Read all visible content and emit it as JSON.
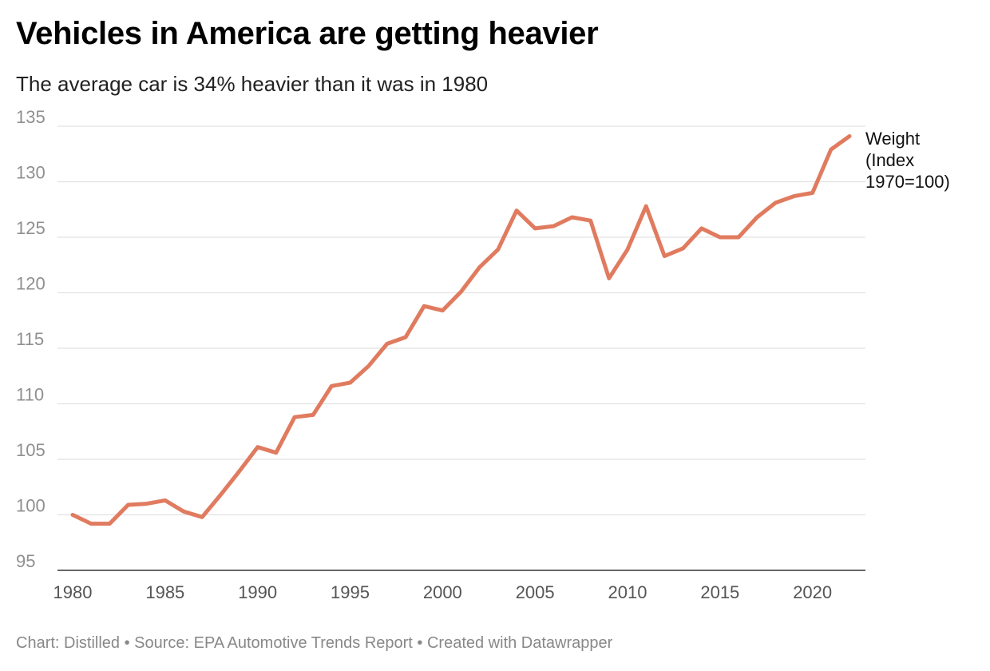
{
  "header": {
    "title": "Vehicles in America are getting heavier",
    "subtitle": "The average car is 34% heavier than it was in 1980"
  },
  "footer": {
    "text": "Chart: Distilled • Source: EPA Automotive Trends Report • Created with Datawrapper"
  },
  "colors": {
    "line": "#e07b5f",
    "grid": "#e2e2e2",
    "axis": "#333333"
  },
  "chart_data": {
    "type": "line",
    "title": "Vehicles in America are getting heavier",
    "subtitle": "The average car is 34% heavier than it was in 1980",
    "xlabel": "",
    "ylabel": "",
    "xlim": [
      1980,
      2022
    ],
    "ylim": [
      95,
      135
    ],
    "y_ticks": [
      95,
      100,
      105,
      110,
      115,
      120,
      125,
      130,
      135
    ],
    "x_ticks": [
      1980,
      1985,
      1990,
      1995,
      2000,
      2005,
      2010,
      2015,
      2020
    ],
    "grid": "horizontal",
    "legend": "direct label at line end",
    "series": [
      {
        "name_lines": [
          "Weight",
          "(Index",
          "1970=100)"
        ],
        "x": [
          1980,
          1981,
          1982,
          1983,
          1984,
          1985,
          1986,
          1987,
          1988,
          1989,
          1990,
          1991,
          1992,
          1993,
          1994,
          1995,
          1996,
          1997,
          1998,
          1999,
          2000,
          2001,
          2002,
          2003,
          2004,
          2005,
          2006,
          2007,
          2008,
          2009,
          2010,
          2011,
          2012,
          2013,
          2014,
          2015,
          2016,
          2017,
          2018,
          2019,
          2020,
          2021,
          2022
        ],
        "values": [
          100.0,
          99.2,
          99.2,
          100.9,
          101.0,
          101.3,
          100.3,
          99.8,
          101.8,
          103.9,
          106.1,
          105.6,
          108.8,
          109.0,
          111.6,
          111.9,
          113.4,
          115.4,
          116.0,
          118.8,
          118.4,
          120.1,
          122.3,
          123.9,
          127.4,
          125.8,
          126.0,
          126.8,
          126.5,
          121.3,
          123.9,
          127.8,
          123.3,
          124.0,
          125.8,
          125.0,
          125.0,
          126.8,
          128.1,
          128.7,
          129.0,
          132.9,
          134.1
        ]
      }
    ]
  }
}
